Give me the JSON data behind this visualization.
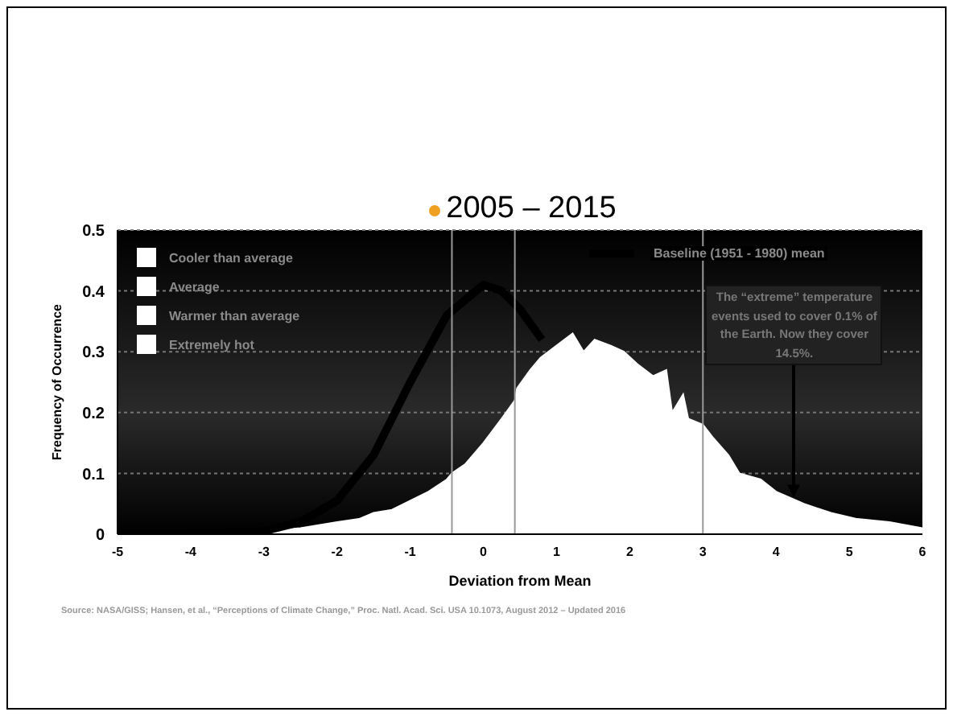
{
  "chart_data": {
    "type": "area",
    "title": "2005 – 2015",
    "xlabel": "Deviation from Mean",
    "ylabel": "Frequency of Occurrence",
    "xlim": [
      -5,
      6
    ],
    "xticks": [
      -5,
      -4,
      -3,
      -2,
      -1,
      0,
      1,
      2,
      3,
      4,
      5,
      6
    ],
    "ylim": [
      0,
      0.5
    ],
    "yticks": [
      0,
      0.1,
      0.2,
      0.3,
      0.4,
      0.5
    ],
    "grid": "y",
    "legend": "top",
    "series": [
      {
        "name": "Baseline (1951 - 1980) mean",
        "type": "line",
        "color": "#000000",
        "x": [
          -5,
          -4,
          -3,
          -2.5,
          -2,
          -1.5,
          -1,
          -0.5,
          0,
          0.25,
          0.5,
          0.8
        ],
        "values": [
          0,
          0,
          0.005,
          0.02,
          0.055,
          0.13,
          0.25,
          0.36,
          0.41,
          0.4,
          0.37,
          0.32
        ]
      },
      {
        "name": "Cooler than average",
        "color": "#ffffff",
        "x": [
          -5,
          -4,
          -3,
          -2.5,
          -2,
          -1.7,
          -1.5,
          -1.25,
          -1,
          -0.75,
          -0.5,
          -0.43
        ],
        "values": [
          0,
          0.002,
          0.005,
          0.01,
          0.02,
          0.025,
          0.035,
          0.04,
          0.055,
          0.07,
          0.09,
          0.1
        ]
      },
      {
        "name": "Average",
        "color": "#ffffff",
        "x": [
          -0.43,
          -0.25,
          0,
          0.25,
          0.43
        ],
        "values": [
          0.1,
          0.115,
          0.15,
          0.19,
          0.22
        ]
      },
      {
        "name": "Warmer than average",
        "color": "#ffffff",
        "x": [
          0.43,
          0.46,
          0.64,
          0.78,
          1.0,
          1.22,
          1.37,
          1.52,
          1.74,
          1.92,
          2.1,
          2.32,
          2.5,
          2.58,
          2.73,
          2.8,
          3.0
        ],
        "values": [
          0.22,
          0.24,
          0.27,
          0.29,
          0.31,
          0.33,
          0.3,
          0.32,
          0.31,
          0.3,
          0.28,
          0.26,
          0.27,
          0.2,
          0.23,
          0.19,
          0.18
        ]
      },
      {
        "name": "Extremely hot",
        "color": "#ffffff",
        "x": [
          3.0,
          3.13,
          3.35,
          3.5,
          3.79,
          4.0,
          4.38,
          4.75,
          5.11,
          5.55,
          6
        ],
        "values": [
          0.18,
          0.16,
          0.13,
          0.1,
          0.09,
          0.07,
          0.05,
          0.035,
          0.025,
          0.02,
          0.01
        ]
      }
    ],
    "ref_lines": [
      {
        "axis": "x",
        "value": -0.43,
        "color": "#999999"
      },
      {
        "axis": "x",
        "value": 0.43,
        "color": "#999999"
      },
      {
        "axis": "x",
        "value": 3,
        "color": "#999999"
      }
    ],
    "annotations": [
      {
        "text": "The “extreme” temperature events used to cover 0.1% of the Earth. Now they cover 14.5%.",
        "x": 4.25,
        "y": 0.06
      },
      "Source: NASA/GISS; Hansen, et al., “Perceptions of Climate Change,” Proc. Natl. Acad. Sci. USA 10.1073, August 2012 – Updated 2016"
    ]
  }
}
